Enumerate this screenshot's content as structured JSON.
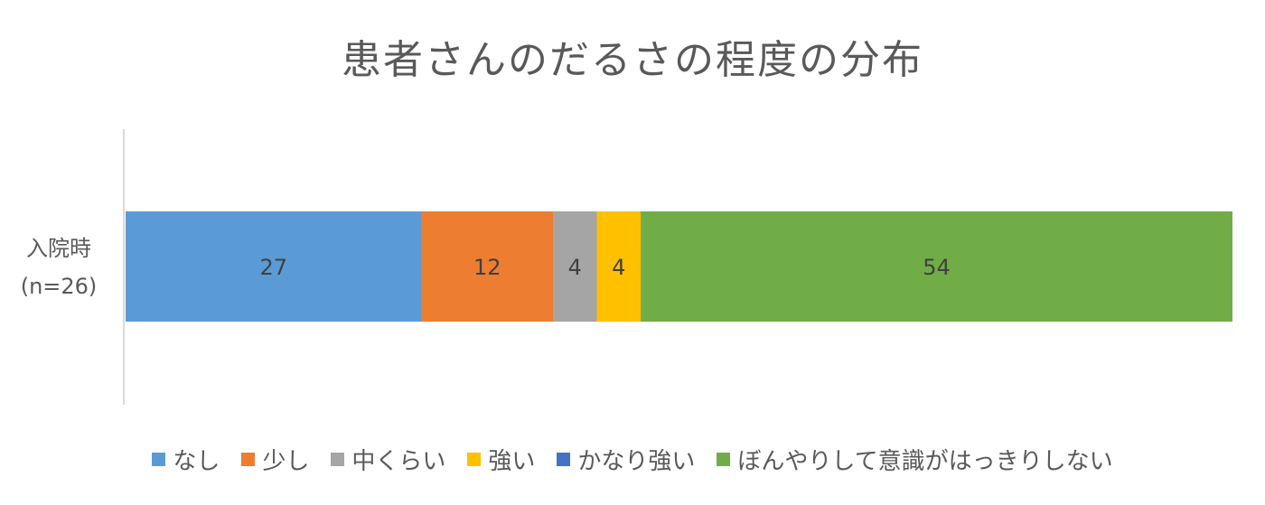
{
  "chart_data": {
    "type": "bar",
    "orientation": "horizontal",
    "stacked": true,
    "title": "患者さんのだるさの程度の分布",
    "categories": [
      "入院時\n(n=26)"
    ],
    "category_lines": [
      "入院時",
      "(n=26)"
    ],
    "xlim": [
      0,
      100
    ],
    "grid": false,
    "legend_position": "bottom",
    "series": [
      {
        "name": "なし",
        "values": [
          27
        ],
        "color": "#5B9BD5",
        "label": "27"
      },
      {
        "name": "少し",
        "values": [
          12
        ],
        "color": "#ED7D31",
        "label": "12"
      },
      {
        "name": "中くらい",
        "values": [
          4
        ],
        "color": "#A5A5A5",
        "label": "4"
      },
      {
        "name": "強い",
        "values": [
          4
        ],
        "color": "#FFC000",
        "label": "4"
      },
      {
        "name": "かなり強い",
        "values": [
          0
        ],
        "color": "#4472C4",
        "label": ""
      },
      {
        "name": "ぼんやりして意識がはっきりしない",
        "values": [
          54
        ],
        "color": "#70AD47",
        "label": "54"
      }
    ]
  }
}
